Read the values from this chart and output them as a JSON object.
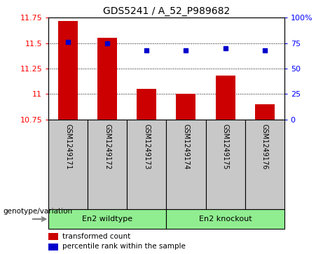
{
  "title": "GDS5241 / A_52_P989682",
  "samples": [
    "GSM1249171",
    "GSM1249172",
    "GSM1249173",
    "GSM1249174",
    "GSM1249175",
    "GSM1249176"
  ],
  "red_values": [
    11.72,
    11.55,
    11.05,
    11.0,
    11.18,
    10.9
  ],
  "blue_values": [
    76,
    75,
    68,
    68,
    70,
    68
  ],
  "ylim_left": [
    10.75,
    11.75
  ],
  "ylim_right": [
    0,
    100
  ],
  "yticks_left": [
    10.75,
    11.0,
    11.25,
    11.5,
    11.75
  ],
  "yticks_right": [
    0,
    25,
    50,
    75,
    100
  ],
  "ytick_labels_left": [
    "10.75",
    "11",
    "11.25",
    "11.5",
    "11.75"
  ],
  "ytick_labels_right": [
    "0",
    "25",
    "50",
    "75",
    "100%"
  ],
  "group1_label": "En2 wildtype",
  "group2_label": "En2 knockout",
  "group1_indices": [
    0,
    1,
    2
  ],
  "group2_indices": [
    3,
    4,
    5
  ],
  "group_color": "#90EE90",
  "bar_color": "#CC0000",
  "dot_color": "#0000CC",
  "sample_bg_color": "#C8C8C8",
  "legend_label_red": "transformed count",
  "legend_label_blue": "percentile rank within the sample",
  "genotype_label": "genotype/variation",
  "bar_width": 0.5,
  "base_value": 10.75
}
